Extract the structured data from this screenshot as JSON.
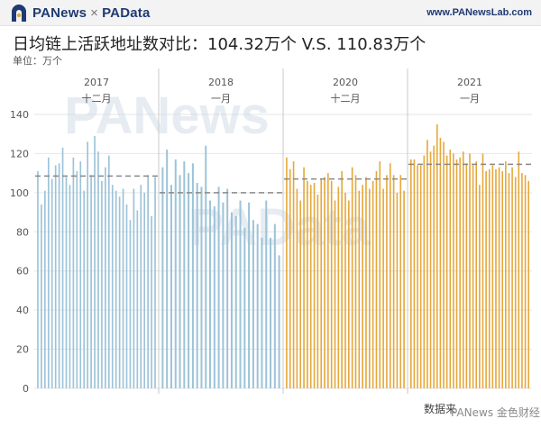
{
  "header": {
    "brand_left": "PANews",
    "brand_sep": "×",
    "brand_right": "PAData",
    "site_url": "www.PANewsLab.com"
  },
  "title": "日均链上活跃地址数对比：104.32万个 V.S. 110.83万个",
  "unit_label": "单位：万个",
  "footer": {
    "source_label": "数据来",
    "badge_text": "PANews 金色财经"
  },
  "watermark": {
    "line1": "PANews",
    "line2": "PAData"
  },
  "colors": {
    "blue": "#9dc3d8",
    "orange": "#e5a83c",
    "grid": "#e6e6e6",
    "divider": "#c8c8c8",
    "avg_line": "#888888",
    "axis_text": "#555555"
  },
  "chart_data": {
    "type": "bar",
    "title": "日均链上活跃地址数对比：104.32万个 V.S. 110.83万个",
    "ylabel": "单位：万个",
    "ylim": [
      0,
      145
    ],
    "yticks": [
      0,
      20,
      40,
      60,
      80,
      100,
      120,
      140
    ],
    "grid": true,
    "panels": [
      {
        "year": "2017",
        "month": "十二月",
        "color_key": "blue",
        "avg": 108.5,
        "values": [
          111,
          94,
          101,
          118,
          107,
          114,
          115,
          123,
          108,
          104,
          118,
          111,
          116,
          101,
          126,
          109,
          129,
          121,
          106,
          113,
          119,
          104,
          101,
          98,
          102,
          94,
          86,
          102,
          91,
          104,
          100,
          109,
          88,
          108
        ]
      },
      {
        "year": "2018",
        "month": "一月",
        "color_key": "blue",
        "avg": 100,
        "values": [
          113,
          122,
          104,
          117,
          109,
          116,
          110,
          115,
          105,
          103,
          124,
          96,
          93,
          103,
          95,
          102,
          90,
          88,
          96,
          82,
          95,
          86,
          84,
          77,
          96,
          77,
          84,
          68
        ]
      },
      {
        "year": "2020",
        "month": "十二月",
        "color_key": "orange",
        "avg": 107,
        "values": [
          118,
          112,
          116,
          102,
          96,
          113,
          106,
          104,
          105,
          99,
          107,
          108,
          110,
          106,
          96,
          103,
          111,
          100,
          96,
          113,
          109,
          101,
          104,
          108,
          102,
          106,
          111,
          116,
          102,
          109,
          115,
          109,
          100,
          109,
          101
        ]
      },
      {
        "year": "2021",
        "month": "一月",
        "color_key": "orange",
        "avg": 114.5,
        "values": [
          117,
          117,
          114,
          114,
          119,
          127,
          121,
          124,
          135,
          128,
          126,
          119,
          122,
          120,
          117,
          118,
          121,
          115,
          120,
          114,
          116,
          104,
          120,
          111,
          112,
          114,
          112,
          113,
          111,
          116,
          110,
          113,
          108,
          121,
          110,
          109,
          106
        ]
      }
    ]
  }
}
